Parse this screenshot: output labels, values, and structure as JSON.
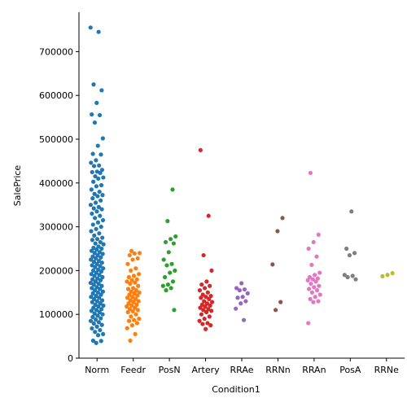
{
  "chart_data": {
    "type": "strip",
    "x_label": "Condition1",
    "y_label": "SalePrice",
    "categories": [
      "Norm",
      "Feedr",
      "PosN",
      "Artery",
      "RRAe",
      "RRNn",
      "RRAn",
      "PosA",
      "RRNe"
    ],
    "colors": [
      "#1f77b4",
      "#ff7f0e",
      "#2ca02c",
      "#d62728",
      "#9467bd",
      "#8c564b",
      "#e377c2",
      "#7f7f7f",
      "#bcbd22"
    ],
    "values": [
      [
        755000,
        745000,
        625000,
        611657,
        582933,
        556581,
        555000,
        538000,
        501837,
        485000,
        466500,
        465000,
        451950,
        446261,
        440000,
        438780,
        430000,
        426000,
        424870,
        423000,
        415298,
        412500,
        410000,
        402861,
        395000,
        392500,
        385000,
        380000,
        375000,
        372500,
        370000,
        365000,
        360000,
        355000,
        350000,
        345000,
        342000,
        340000,
        335000,
        330000,
        325000,
        320000,
        315000,
        310000,
        305000,
        300000,
        295000,
        290000,
        285000,
        280000,
        275000,
        272000,
        270000,
        265000,
        262000,
        260000,
        255000,
        252000,
        250000,
        248000,
        245000,
        242000,
        240000,
        238000,
        235000,
        232000,
        230000,
        228000,
        225000,
        222000,
        220000,
        218000,
        215000,
        212000,
        210000,
        208000,
        205000,
        202000,
        200000,
        198000,
        195000,
        192000,
        190000,
        188000,
        185000,
        182000,
        180000,
        178000,
        175000,
        172000,
        170000,
        168000,
        165000,
        162000,
        160000,
        158000,
        155000,
        152000,
        150000,
        148000,
        145000,
        142000,
        140000,
        138000,
        135000,
        132000,
        130000,
        128000,
        125000,
        122000,
        120000,
        118000,
        115000,
        112000,
        110000,
        108000,
        105000,
        102000,
        100000,
        97000,
        94000,
        91000,
        88000,
        85000,
        82000,
        79000,
        76000,
        72000,
        68000,
        64000,
        60000,
        55000,
        52500,
        40000,
        39300,
        34900
      ],
      [
        244600,
        240000,
        239000,
        235000,
        228000,
        225000,
        215000,
        205000,
        200000,
        192000,
        188000,
        185000,
        180000,
        178000,
        175000,
        172500,
        170000,
        165000,
        160000,
        158000,
        155000,
        152000,
        150000,
        148000,
        145000,
        143000,
        140000,
        138000,
        135000,
        132000,
        130000,
        128000,
        125000,
        122000,
        120000,
        118000,
        115000,
        112000,
        110000,
        107000,
        105000,
        100000,
        95000,
        90000,
        87000,
        85000,
        80000,
        75000,
        68400,
        55000,
        40000
      ],
      [
        385000,
        313000,
        278000,
        272000,
        265000,
        262000,
        242000,
        225000,
        215000,
        212000,
        200000,
        195000,
        185000,
        175000,
        168000,
        165000,
        160000,
        155000,
        110000
      ],
      [
        475000,
        325000,
        235000,
        200000,
        175000,
        168000,
        165000,
        160000,
        155000,
        150000,
        145000,
        142000,
        140000,
        138000,
        135000,
        130000,
        128000,
        125000,
        122000,
        120000,
        118000,
        115000,
        112000,
        110000,
        108000,
        105000,
        100000,
        95000,
        90000,
        85000,
        80000,
        78000,
        75000,
        66500
      ],
      [
        171000,
        160000,
        157000,
        155000,
        148000,
        140000,
        138000,
        130000,
        125000,
        113000,
        87000
      ],
      [
        320000,
        290000,
        214000,
        128000,
        110000
      ],
      [
        423000,
        282000,
        265000,
        250000,
        232000,
        213000,
        195000,
        190000,
        185000,
        182000,
        180000,
        178000,
        175000,
        170000,
        165000,
        162000,
        158000,
        155000,
        150000,
        145000,
        140000,
        135000,
        130000,
        128000,
        80000
      ],
      [
        335000,
        250000,
        240000,
        235000,
        190000,
        188000,
        185000,
        180000
      ],
      [
        194000,
        190000,
        187000
      ]
    ],
    "ylim": [
      0,
      790000
    ],
    "yticks": [
      0,
      100000,
      200000,
      300000,
      400000,
      500000,
      600000,
      700000
    ]
  }
}
